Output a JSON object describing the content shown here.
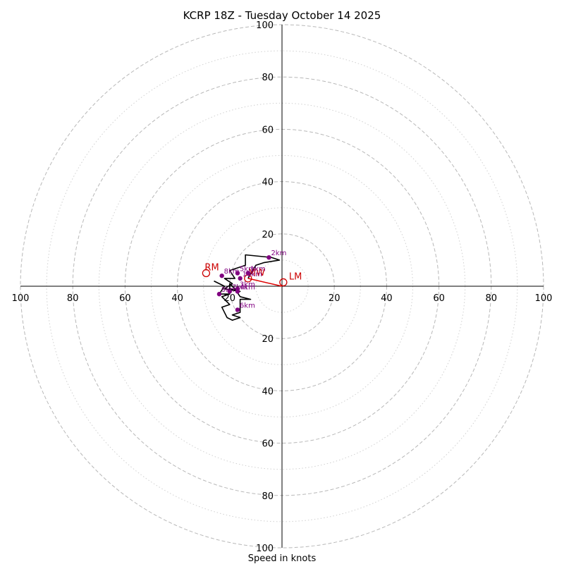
{
  "chart_data": {
    "type": "hodograph",
    "title": "KCRP 18Z - Tuesday October 14 2025",
    "xlabel": "Speed in knots",
    "rmax": 100,
    "major_rings": [
      20,
      40,
      60,
      80,
      100
    ],
    "minor_rings": [
      10,
      30,
      50,
      70,
      90
    ],
    "x_tick_labels": [
      "100",
      "80",
      "60",
      "40",
      "20",
      "",
      "20",
      "40",
      "60",
      "80",
      "100"
    ],
    "y_tick_labels_top": [
      "100",
      "80",
      "60",
      "40",
      "20"
    ],
    "y_tick_labels_bottom": [
      "20",
      "40",
      "60",
      "80",
      "100"
    ],
    "hodograph_uv": [
      [
        -13,
        3
      ],
      [
        -10,
        8
      ],
      [
        -7,
        9
      ],
      [
        -1,
        10
      ],
      [
        -4,
        11
      ],
      [
        -14,
        12
      ],
      [
        -14,
        8
      ],
      [
        -20,
        6
      ],
      [
        -18,
        3
      ],
      [
        -22,
        3
      ],
      [
        -19,
        1
      ],
      [
        -22,
        -1
      ],
      [
        -16,
        -2
      ],
      [
        -20,
        -1
      ],
      [
        -20,
        1
      ],
      [
        -18,
        -1
      ],
      [
        -16,
        -4
      ],
      [
        -12,
        -5
      ],
      [
        -16,
        -5
      ],
      [
        -16,
        -10
      ],
      [
        -19,
        -11
      ],
      [
        -16,
        -12
      ],
      [
        -19,
        -13
      ],
      [
        -21,
        -12
      ],
      [
        -23,
        -8
      ],
      [
        -20,
        -7
      ],
      [
        -23,
        -4
      ],
      [
        -20,
        -3
      ],
      [
        -24,
        -3
      ],
      [
        -22,
        0
      ],
      [
        -26,
        2
      ]
    ],
    "height_markers": [
      {
        "label": "1km",
        "u": -13,
        "v": 5
      },
      {
        "label": "2km",
        "u": -5,
        "v": 11
      },
      {
        "label": "3km",
        "u": -17,
        "v": -1
      },
      {
        "label": "4km",
        "u": -17,
        "v": -2
      },
      {
        "label": "5km",
        "u": -17,
        "v": 5
      },
      {
        "label": "6km",
        "u": -17,
        "v": -9
      },
      {
        "label": "7km",
        "u": -20,
        "v": -2
      },
      {
        "label": "8km",
        "u": -23,
        "v": 4
      },
      {
        "label": "9km",
        "u": -24,
        "v": -3
      },
      {
        "label": "10km",
        "u": -16,
        "v": 3
      }
    ],
    "storm_motion": {
      "RM": {
        "label": "RM",
        "u": -29,
        "v": 5
      },
      "LM": {
        "label": "LM",
        "u": 0.5,
        "v": 1.5
      },
      "MW": {
        "label": "MW",
        "u": -13,
        "v": 3
      }
    }
  }
}
